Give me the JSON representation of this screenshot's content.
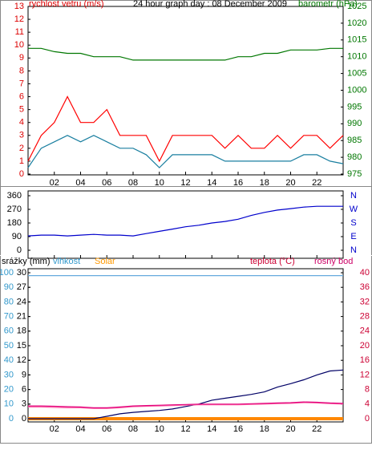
{
  "chart_data": [
    {
      "type": "line",
      "labels": [
        {
          "text": "rychlost vetru (m/s)",
          "color": "#dd0000"
        },
        {
          "text": "24 hour graph day : 08 December 2009",
          "color": "#000000"
        },
        {
          "text": "barometr (hPa)",
          "color": "#007700"
        }
      ],
      "x": [
        0,
        1,
        2,
        3,
        4,
        5,
        6,
        7,
        8,
        9,
        10,
        11,
        12,
        13,
        14,
        15,
        16,
        17,
        18,
        19,
        20,
        21,
        22,
        23,
        24
      ],
      "xlim": [
        0,
        24
      ],
      "xticks": [
        {
          "value": 2,
          "label": "02"
        },
        {
          "value": 4,
          "label": "04"
        },
        {
          "value": 6,
          "label": "06"
        },
        {
          "value": 8,
          "label": "08"
        },
        10,
        12,
        14,
        16,
        18,
        20,
        22
      ],
      "ylim": [
        0,
        13
      ],
      "yticks": [
        0,
        1,
        2,
        3,
        4,
        5,
        6,
        7,
        8,
        9,
        10,
        11,
        12,
        13
      ],
      "ytick_color": "#dd0000",
      "y2lim": [
        975,
        1025
      ],
      "y2ticks": [
        975,
        980,
        985,
        990,
        995,
        1000,
        1005,
        1010,
        1015,
        1020,
        1025
      ],
      "y2tick_color": "#007700",
      "series": [
        {
          "color": "#ff0000",
          "axis": "y",
          "values": [
            1,
            3,
            4,
            6,
            4,
            4,
            5,
            3,
            3,
            3,
            1,
            3,
            3,
            3,
            3,
            2,
            3,
            2,
            2,
            3,
            2,
            3,
            3,
            2,
            3
          ]
        },
        {
          "color": "#1a7fa0",
          "axis": "y",
          "values": [
            0.5,
            2,
            2.5,
            3,
            2.5,
            3,
            2.5,
            2,
            2,
            1.5,
            0.5,
            1.5,
            1.5,
            1.5,
            1.5,
            1,
            1,
            1,
            1,
            1,
            1,
            1.5,
            1.5,
            1,
            0.8
          ]
        },
        {
          "color": "#007700",
          "axis": "y2",
          "values": [
            1012.5,
            1012.5,
            1011.5,
            1011,
            1011,
            1010,
            1010,
            1010,
            1009,
            1009,
            1009,
            1009,
            1009,
            1009,
            1009,
            1009,
            1010,
            1010,
            1011,
            1011,
            1012,
            1012,
            1012,
            1012.5,
            1012.5
          ]
        }
      ]
    },
    {
      "type": "line",
      "x": [
        0,
        1,
        2,
        3,
        4,
        5,
        6,
        7,
        8,
        9,
        10,
        11,
        12,
        13,
        14,
        15,
        16,
        17,
        18,
        19,
        20,
        21,
        22,
        23,
        24
      ],
      "xlim": [
        0,
        24
      ],
      "xticks": [
        2,
        4,
        6,
        8,
        10,
        12,
        14,
        16,
        18,
        20,
        22
      ],
      "ylim": [
        0,
        360
      ],
      "yticks": [
        0,
        90,
        180,
        270,
        360
      ],
      "ytick_color": "#000000",
      "y2lim": [
        0,
        360
      ],
      "y2ticks": [
        {
          "value": 0,
          "label": "N"
        },
        {
          "value": 90,
          "label": "E"
        },
        {
          "value": 180,
          "label": "S"
        },
        {
          "value": 270,
          "label": "W"
        },
        {
          "value": 360,
          "label": "N"
        }
      ],
      "y2tick_color": "#0000cc",
      "series": [
        {
          "color": "#0000cc",
          "axis": "y",
          "values": [
            95,
            100,
            100,
            95,
            100,
            105,
            100,
            100,
            95,
            110,
            125,
            140,
            155,
            165,
            180,
            190,
            205,
            230,
            250,
            265,
            275,
            285,
            290,
            290,
            290
          ]
        }
      ]
    },
    {
      "type": "line",
      "labels": [
        {
          "text": "srážky (mm)",
          "color": "#000000"
        },
        {
          "text": "vlhkost",
          "color": "#3399cc"
        },
        {
          "text": "Solar",
          "color": "#ff9900"
        },
        {
          "text": "teplota (°C)",
          "color": "#cc0033"
        },
        {
          "text": "rosný bod",
          "color": "#cc0066"
        }
      ],
      "x": [
        0,
        1,
        2,
        3,
        4,
        5,
        6,
        7,
        8,
        9,
        10,
        11,
        12,
        13,
        14,
        15,
        16,
        17,
        18,
        19,
        20,
        21,
        22,
        23,
        24
      ],
      "xlim": [
        0,
        24
      ],
      "xticks": [
        {
          "value": 2,
          "label": "02"
        },
        {
          "value": 4,
          "label": "04"
        },
        {
          "value": 6,
          "label": "06"
        },
        {
          "value": 8,
          "label": "08"
        },
        10,
        12,
        14,
        16,
        18,
        20,
        22
      ],
      "ylim": [
        0,
        100
      ],
      "yticks": [
        0,
        10,
        20,
        30,
        40,
        50,
        60,
        70,
        80,
        90,
        100
      ],
      "ytick_color": "#3399cc",
      "y3lim": [
        0,
        30
      ],
      "y3ticks": [
        0,
        3,
        6,
        9,
        12,
        15,
        18,
        21,
        24,
        27,
        30
      ],
      "y3tick_color": "#000000",
      "y2lim": [
        0,
        40
      ],
      "y2ticks": [
        0,
        4,
        8,
        12,
        16,
        20,
        24,
        28,
        32,
        36,
        40
      ],
      "y2tick_color": "#cc0033",
      "series": [
        {
          "color": "#66aadd",
          "axis": "y",
          "values": [
            98,
            98,
            98,
            98,
            98,
            98,
            98,
            98,
            98,
            98,
            98,
            98,
            98,
            98,
            98,
            98,
            98,
            98,
            98,
            98,
            98,
            98,
            98,
            98,
            98
          ]
        },
        {
          "color": "#ff8800",
          "axis": "y",
          "width": 4,
          "values": [
            0,
            0,
            0,
            0,
            0,
            0,
            0,
            0,
            0,
            0,
            0,
            0,
            0,
            0,
            0,
            0,
            0,
            0,
            0,
            0,
            0,
            0,
            0,
            0,
            0
          ]
        },
        {
          "color": "#000066",
          "axis": "y3",
          "values": [
            0,
            0,
            0,
            0,
            0,
            0,
            0.5,
            1,
            1.3,
            1.5,
            1.7,
            2,
            2.5,
            3,
            3.8,
            4.2,
            4.6,
            5,
            5.5,
            6.5,
            7.2,
            8,
            9,
            9.8,
            10
          ]
        },
        {
          "color": "#ff66aa",
          "axis": "y2",
          "values": [
            3.2,
            3.2,
            3.1,
            3,
            3,
            2.8,
            2.8,
            3,
            3.3,
            3.4,
            3.5,
            3.6,
            3.7,
            3.8,
            3.8,
            3.8,
            3.8,
            3.9,
            4,
            4.1,
            4.2,
            4.4,
            4.3,
            4.1,
            4
          ]
        },
        {
          "color": "#e0007a",
          "axis": "y2",
          "values": [
            3.5,
            3.5,
            3.4,
            3.3,
            3.2,
            3,
            3,
            3.2,
            3.5,
            3.6,
            3.7,
            3.8,
            3.9,
            4,
            4,
            4,
            4,
            4.1,
            4.2,
            4.3,
            4.4,
            4.6,
            4.5,
            4.3,
            4.2
          ]
        }
      ]
    }
  ]
}
